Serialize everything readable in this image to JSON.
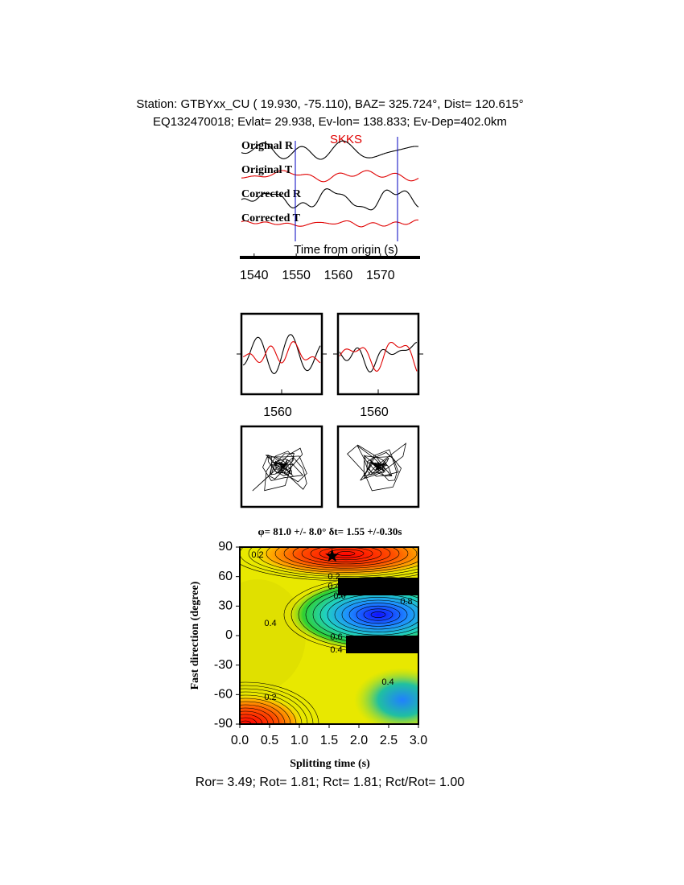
{
  "header": {
    "line1": "Station: GTBYxx_CU (  19.930,  -75.110), BAZ=  325.724°, Dist=  120.615°",
    "line2": "EQ132470018; Evlat=  29.938, Ev-lon= 138.833; Ev-Dep=402.0km"
  },
  "traces": {
    "labels": [
      "Original R",
      "Original T",
      "Corrected R",
      "Corrected T"
    ],
    "phase": "SKKS",
    "xlabel": "Time from origin (s)",
    "xlim": [
      1536.6,
      1579.4
    ],
    "xticks": [
      1540,
      1550,
      1560,
      1570
    ]
  },
  "particle": {
    "xticks": [
      1560,
      1560
    ]
  },
  "grid_search": {
    "title": "φ= 81.0 +/- 8.0° δt= 1.55 +/-0.30s",
    "xlabel": "Splitting time (s)",
    "ylabel": "Fast direction (degree)",
    "xlim": [
      0,
      3
    ],
    "ylim": [
      -90,
      90
    ],
    "xticks": [
      {
        "value": 0,
        "label": "0.0"
      },
      0.5,
      {
        "value": 1,
        "label": "1.0"
      },
      1.5,
      {
        "value": 2,
        "label": "2.0"
      },
      2.5,
      {
        "value": 3,
        "label": "3.0"
      }
    ],
    "yticks": [
      90,
      60,
      30,
      0,
      -30,
      -60,
      -90
    ],
    "best": {
      "x": 1.55,
      "y": 81
    },
    "contour_labels": [
      "0.2",
      "0.4",
      "0.6",
      "0.8",
      "0.4",
      "0.6",
      "0.4",
      "0.4",
      "0.2",
      "0.2",
      "0.4"
    ]
  },
  "footer": "Ror= 3.49; Rot= 1.81; Rct= 1.81; Rct/Rot= 1.00"
}
